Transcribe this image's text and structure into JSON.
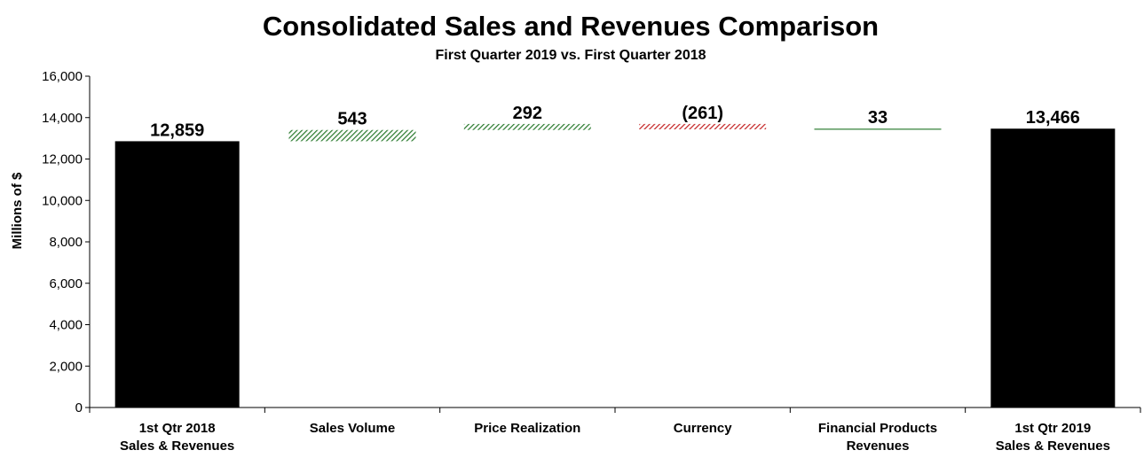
{
  "chart_data": {
    "type": "bar",
    "subtype": "waterfall",
    "title": "Consolidated Sales and Revenues Comparison",
    "subtitle": "First Quarter 2019 vs. First Quarter 2018",
    "xlabel": "",
    "ylabel": "Millions of $",
    "ylim": [
      0,
      16000
    ],
    "yticks": [
      0,
      2000,
      4000,
      6000,
      8000,
      10000,
      12000,
      14000,
      16000
    ],
    "ytick_labels": [
      "0",
      "2,000",
      "4,000",
      "6,000",
      "8,000",
      "10,000",
      "12,000",
      "14,000",
      "16,000"
    ],
    "categories": [
      [
        "1st Qtr 2018",
        "Sales & Revenues"
      ],
      [
        "Sales Volume"
      ],
      [
        "Price Realization"
      ],
      [
        "Currency"
      ],
      [
        "Financial Products",
        "Revenues"
      ],
      [
        "1st Qtr 2019",
        "Sales & Revenues"
      ]
    ],
    "values": [
      12859,
      543,
      292,
      -261,
      33,
      13466
    ],
    "kinds": [
      "total",
      "increase",
      "increase",
      "decrease",
      "increase",
      "total"
    ],
    "value_labels": [
      "12,859",
      "543",
      "292",
      "(261)",
      "33",
      "13,466"
    ],
    "colors": {
      "total": "#000000",
      "increase": "#2e7d32",
      "decrease": "#c62828"
    }
  }
}
